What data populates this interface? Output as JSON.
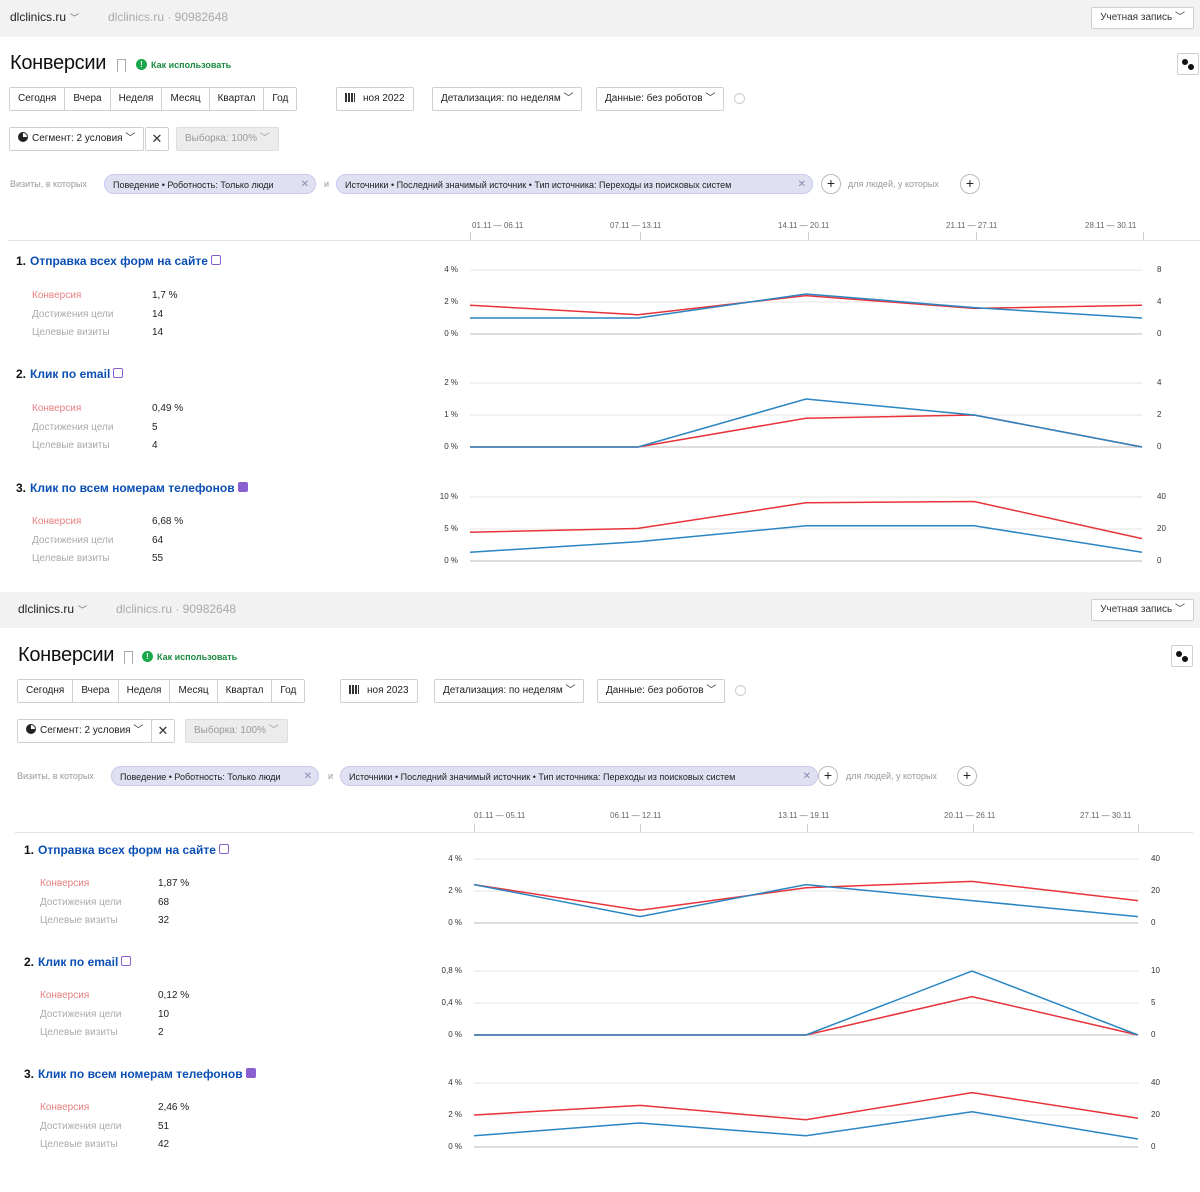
{
  "colors": {
    "conversion": "#e8333b",
    "reaches": "#2a86c2",
    "chip": "#e0e0f3",
    "help": "#1ba84a",
    "link": "#0b4fb5"
  },
  "panels": [
    {
      "site": "dlclinics.ru",
      "site_id": "dlclinics.ru · 90982648",
      "account": "Учетная запись",
      "title": "Конверсии",
      "help": "Как использовать",
      "periods": [
        "Сегодня",
        "Вчера",
        "Неделя",
        "Месяц",
        "Квартал",
        "Год"
      ],
      "date": "ноя 2022",
      "detail": "Детализация: по неделям",
      "data_filter": "Данные: без роботов",
      "segment": "Сегмент: 2 условия",
      "sample": "Выборка: 100%",
      "visits_label": "Визиты, в которых",
      "chip1": "Поведение • Роботность: Только люди",
      "and": "и",
      "chip2": "Источники • Последний значимый источник • Тип источника: Переходы из поисковых систем",
      "people_label": "для людей, у которых",
      "weeks": [
        "01.11 — 06.11",
        "07.11 — 13.11",
        "14.11 — 20.11",
        "21.11 — 27.11",
        "28.11 — 30.11"
      ],
      "goals": [
        {
          "num": "1.",
          "name": "Отправка всех форм на сайте",
          "icon": "form-icon",
          "metrics": [
            {
              "label": "Конверсия",
              "value": "1,7 %"
            },
            {
              "label": "Достижения цели",
              "value": "14"
            },
            {
              "label": "Целевые визиты",
              "value": "14"
            }
          ],
          "left_ticks": [
            "4 %",
            "2 %",
            "0 %"
          ],
          "right_ticks": [
            "8",
            "4",
            "0"
          ]
        },
        {
          "num": "2.",
          "name": "Клик по email",
          "icon": "email-icon",
          "metrics": [
            {
              "label": "Конверсия",
              "value": "0,49 %"
            },
            {
              "label": "Достижения цели",
              "value": "5"
            },
            {
              "label": "Целевые визиты",
              "value": "4"
            }
          ],
          "left_ticks": [
            "2 %",
            "1 %",
            "0 %"
          ],
          "right_ticks": [
            "4",
            "2",
            "0"
          ]
        },
        {
          "num": "3.",
          "name": "Клик по всем номерам телефонов",
          "icon": "phone-icon",
          "metrics": [
            {
              "label": "Конверсия",
              "value": "6,68 %"
            },
            {
              "label": "Достижения цели",
              "value": "64"
            },
            {
              "label": "Целевые визиты",
              "value": "55"
            }
          ],
          "left_ticks": [
            "10 %",
            "5 %",
            "0 %"
          ],
          "right_ticks": [
            "40",
            "20",
            "0"
          ]
        }
      ]
    },
    {
      "site": "dlclinics.ru",
      "site_id": "dlclinics.ru · 90982648",
      "account": "Учетная запись",
      "title": "Конверсии",
      "help": "Как использовать",
      "periods": [
        "Сегодня",
        "Вчера",
        "Неделя",
        "Месяц",
        "Квартал",
        "Год"
      ],
      "date": "ноя 2023",
      "detail": "Детализация: по неделям",
      "data_filter": "Данные: без роботов",
      "segment": "Сегмент: 2 условия",
      "sample": "Выборка: 100%",
      "visits_label": "Визиты, в которых",
      "chip1": "Поведение • Роботность: Только люди",
      "and": "и",
      "chip2": "Источники • Последний значимый источник • Тип источника: Переходы из поисковых систем",
      "people_label": "для людей, у которых",
      "weeks": [
        "01.11 — 05.11",
        "06.11 — 12.11",
        "13.11 — 19.11",
        "20.11 — 26.11",
        "27.11 — 30.11"
      ],
      "goals": [
        {
          "num": "1.",
          "name": "Отправка всех форм на сайте",
          "icon": "form-icon",
          "metrics": [
            {
              "label": "Конверсия",
              "value": "1,87 %"
            },
            {
              "label": "Достижения цели",
              "value": "68"
            },
            {
              "label": "Целевые визиты",
              "value": "32"
            }
          ],
          "left_ticks": [
            "4 %",
            "2 %",
            "0 %"
          ],
          "right_ticks": [
            "40",
            "20",
            "0"
          ]
        },
        {
          "num": "2.",
          "name": "Клик по email",
          "icon": "email-icon",
          "metrics": [
            {
              "label": "Конверсия",
              "value": "0,12 %"
            },
            {
              "label": "Достижения цели",
              "value": "10"
            },
            {
              "label": "Целевые визиты",
              "value": "2"
            }
          ],
          "left_ticks": [
            "0,8 %",
            "0,4 %",
            "0 %"
          ],
          "right_ticks": [
            "10",
            "5",
            "0"
          ]
        },
        {
          "num": "3.",
          "name": "Клик по всем номерам телефонов",
          "icon": "phone-icon",
          "metrics": [
            {
              "label": "Конверсия",
              "value": "2,46 %"
            },
            {
              "label": "Достижения цели",
              "value": "51"
            },
            {
              "label": "Целевые визиты",
              "value": "42"
            }
          ],
          "left_ticks": [
            "4 %",
            "2 %",
            "0 %"
          ],
          "right_ticks": [
            "40",
            "20",
            "0"
          ]
        }
      ]
    }
  ],
  "chart_data": [
    {
      "type": "line",
      "x": [
        "01.11 — 06.11",
        "07.11 — 13.11",
        "14.11 — 20.11",
        "21.11 — 27.11",
        "28.11 — 30.11"
      ],
      "y_left_lim": [
        0,
        4
      ],
      "y_right_lim": [
        0,
        8
      ],
      "series": [
        {
          "axis": "left",
          "values": [
            1.8,
            1.2,
            2.4,
            1.6,
            1.8
          ]
        },
        {
          "axis": "right",
          "values": [
            2,
            2,
            5,
            3.3,
            2
          ]
        }
      ]
    },
    {
      "type": "line",
      "x": [
        "01.11 — 06.11",
        "07.11 — 13.11",
        "14.11 — 20.11",
        "21.11 — 27.11",
        "28.11 — 30.11"
      ],
      "y_left_lim": [
        0,
        2
      ],
      "y_right_lim": [
        0,
        4
      ],
      "series": [
        {
          "axis": "left",
          "values": [
            0,
            0,
            0.9,
            1.0,
            0
          ]
        },
        {
          "axis": "right",
          "values": [
            0,
            0,
            3,
            2,
            0
          ]
        }
      ]
    },
    {
      "type": "line",
      "x": [
        "01.11 — 06.11",
        "07.11 — 13.11",
        "14.11 — 20.11",
        "21.11 — 27.11",
        "28.11 — 30.11"
      ],
      "y_left_lim": [
        0,
        10
      ],
      "y_right_lim": [
        0,
        40
      ],
      "series": [
        {
          "axis": "left",
          "values": [
            4.5,
            5.1,
            9.1,
            9.3,
            3.5
          ]
        },
        {
          "axis": "right",
          "values": [
            5.5,
            12,
            22,
            22,
            5.5
          ]
        }
      ]
    },
    {
      "type": "line",
      "x": [
        "01.11 — 05.11",
        "06.11 — 12.11",
        "13.11 — 19.11",
        "20.11 — 26.11",
        "27.11 — 30.11"
      ],
      "y_left_lim": [
        0,
        4
      ],
      "y_right_lim": [
        0,
        40
      ],
      "series": [
        {
          "axis": "left",
          "values": [
            2.4,
            0.8,
            2.2,
            2.6,
            1.4
          ]
        },
        {
          "axis": "right",
          "values": [
            24,
            4,
            24,
            14,
            4
          ]
        }
      ]
    },
    {
      "type": "line",
      "x": [
        "01.11 — 05.11",
        "06.11 — 12.11",
        "13.11 — 19.11",
        "20.11 — 26.11",
        "27.11 — 30.11"
      ],
      "y_left_lim": [
        0,
        0.8
      ],
      "y_right_lim": [
        0,
        10
      ],
      "series": [
        {
          "axis": "left",
          "values": [
            0,
            0,
            0,
            0.48,
            0
          ]
        },
        {
          "axis": "right",
          "values": [
            0,
            0,
            0,
            10,
            0
          ]
        }
      ]
    },
    {
      "type": "line",
      "x": [
        "01.11 — 05.11",
        "06.11 — 12.11",
        "13.11 — 19.11",
        "20.11 — 26.11",
        "27.11 — 30.11"
      ],
      "y_left_lim": [
        0,
        4
      ],
      "y_right_lim": [
        0,
        40
      ],
      "series": [
        {
          "axis": "left",
          "values": [
            2.0,
            2.6,
            1.7,
            3.4,
            1.8
          ]
        },
        {
          "axis": "right",
          "values": [
            7,
            15,
            7,
            22,
            5
          ]
        }
      ]
    }
  ]
}
